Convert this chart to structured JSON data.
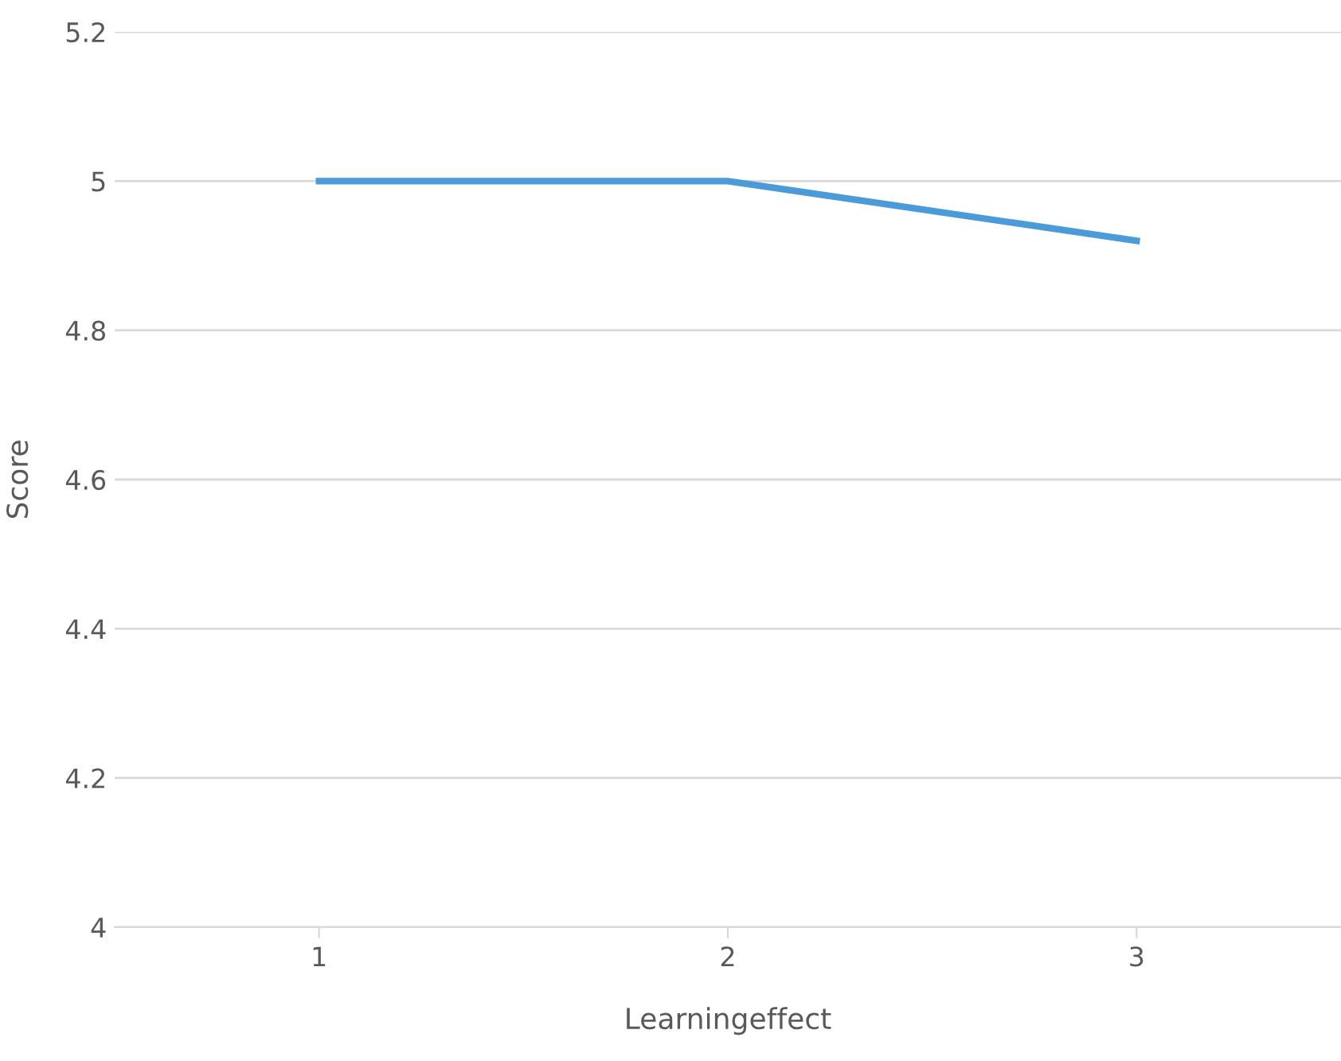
{
  "chart_data": {
    "type": "line",
    "xlabel": "Learningeffect",
    "ylabel": "Score",
    "categories": [
      "1",
      "2",
      "3"
    ],
    "series": [
      {
        "color": "#4a9bd8",
        "values": [
          5,
          5,
          4.92
        ]
      }
    ],
    "ylim": [
      4,
      5.2
    ],
    "yticks": [
      4,
      {
        "value": 4.2,
        "label": "4.2"
      },
      {
        "value": 4.4,
        "label": "4.4"
      },
      {
        "value": 4.6,
        "label": "4.6"
      },
      {
        "value": 4.8,
        "label": "4.8"
      },
      5,
      {
        "value": 5.2,
        "label": "5.2"
      }
    ],
    "grid": "y",
    "legend": false,
    "marker": "none",
    "line_style": "solid"
  }
}
